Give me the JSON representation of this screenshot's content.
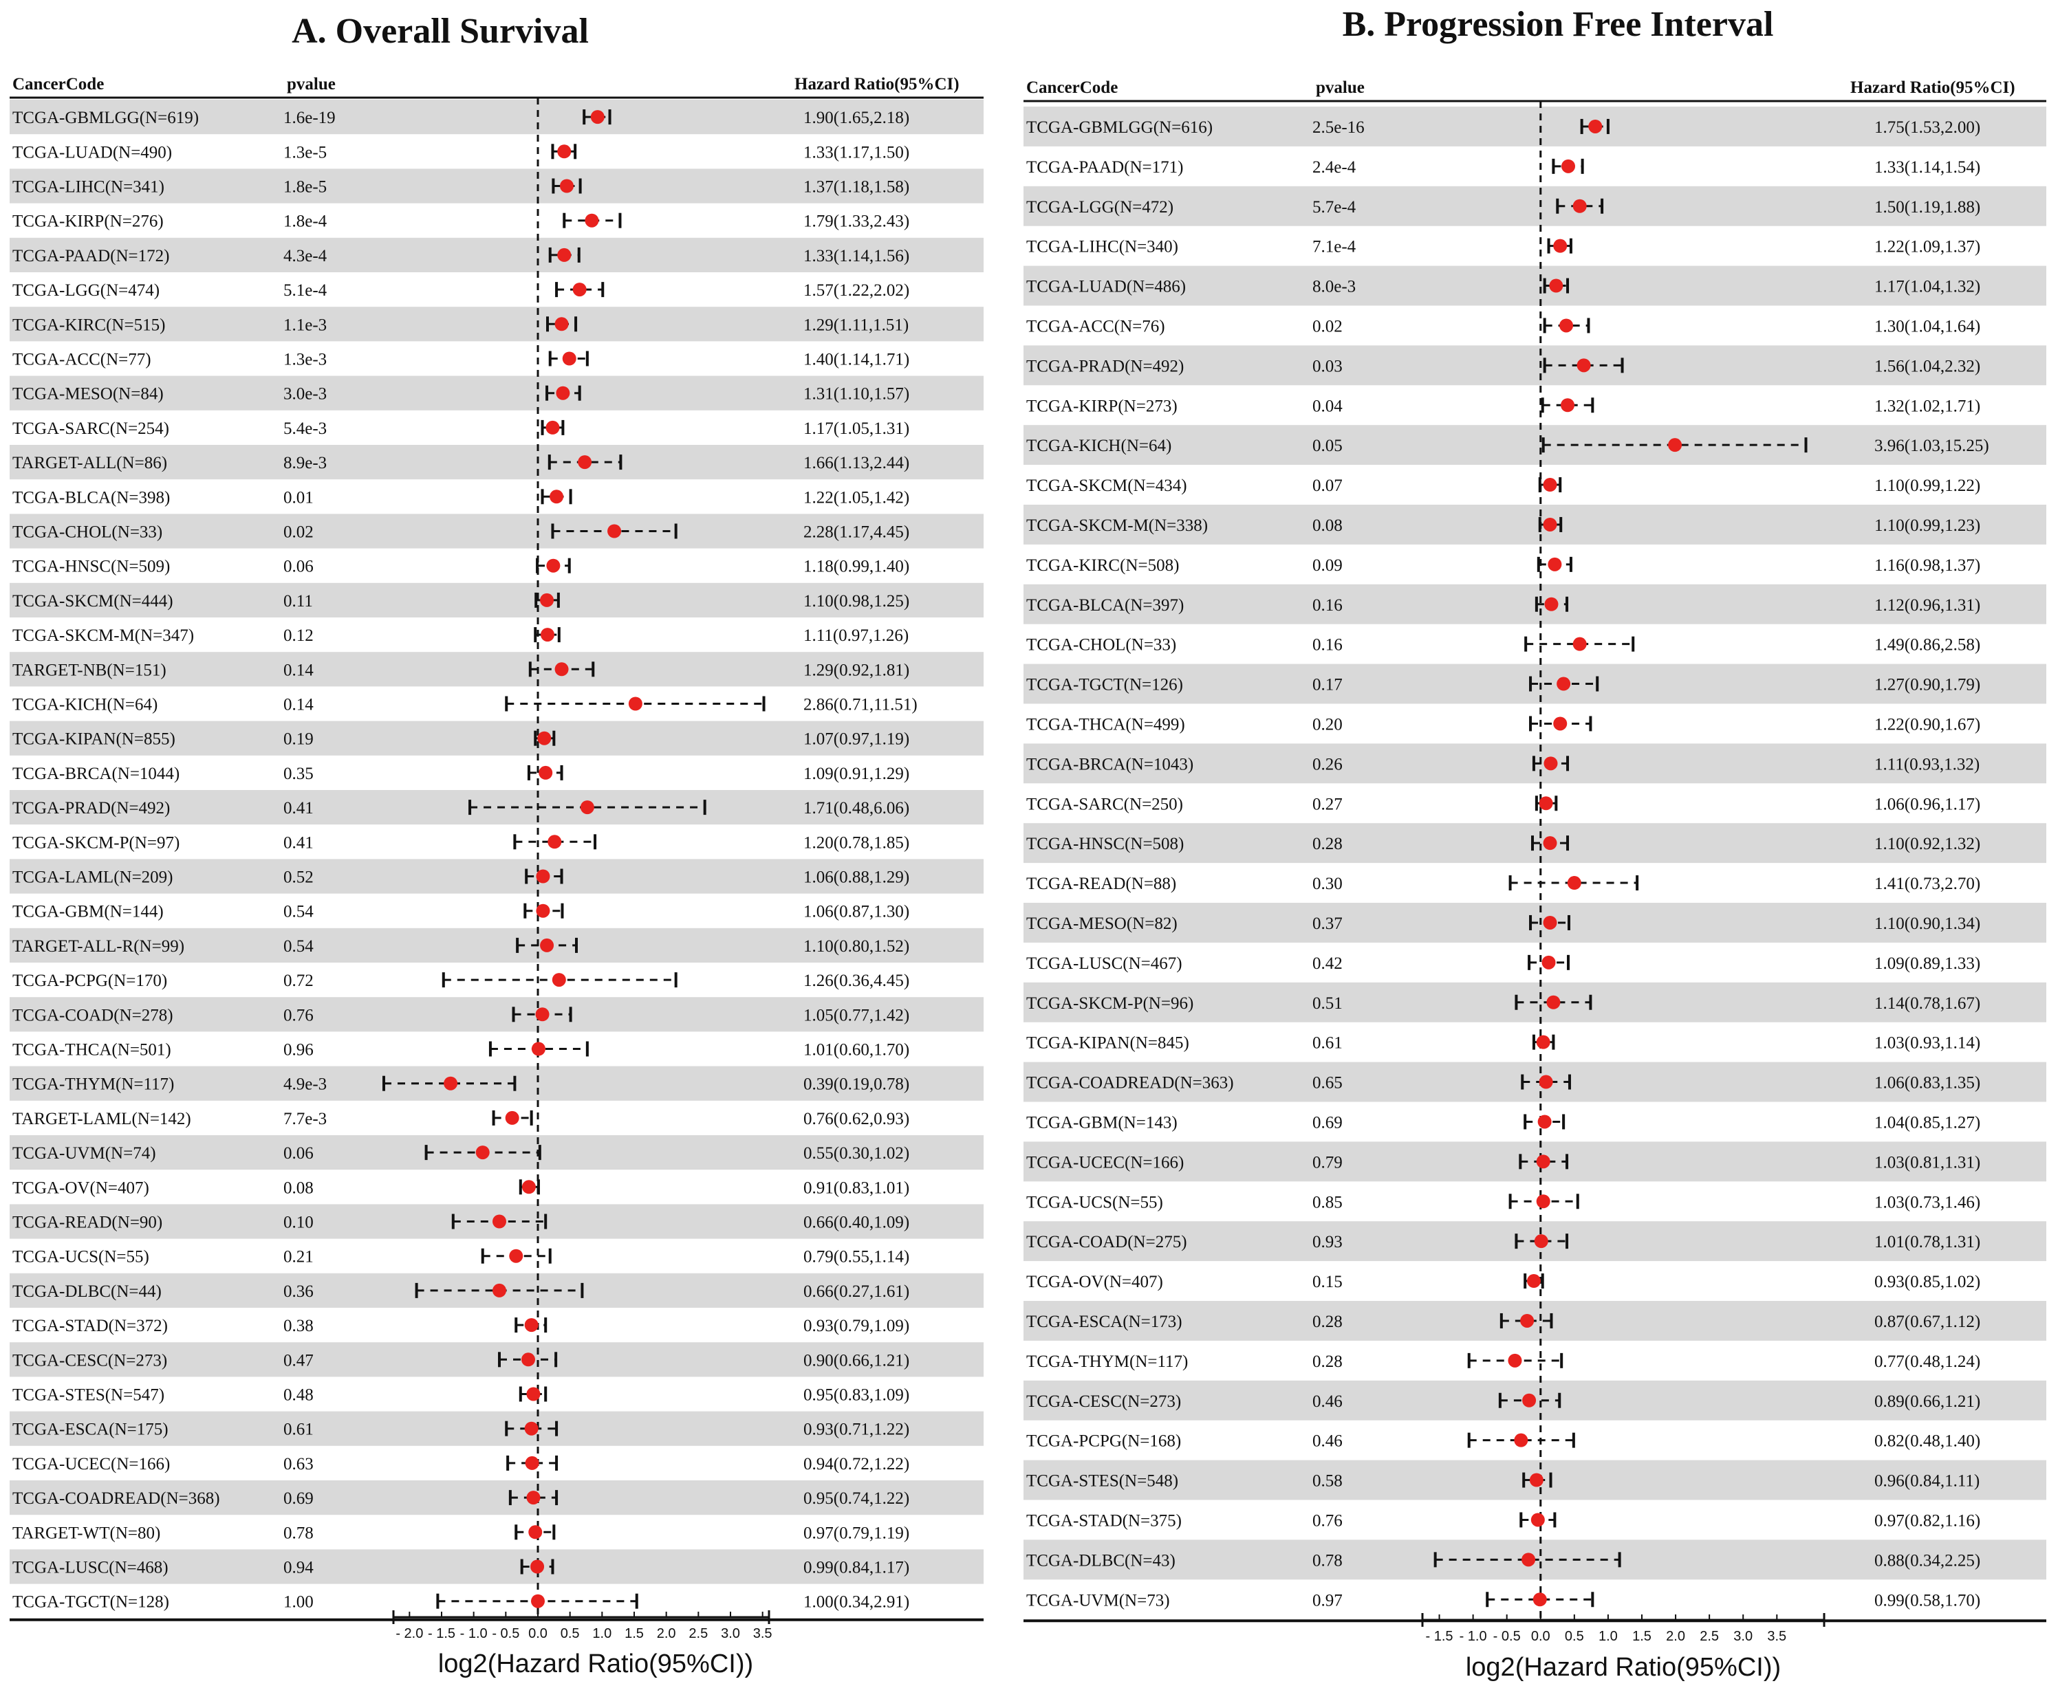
{
  "chart_data": [
    {
      "type": "forest",
      "title": "A.  Overall Survival",
      "headers": {
        "cancer": "CancerCode",
        "pvalue": "pvalue",
        "hr": "Hazard Ratio(95%CI)"
      },
      "xlabel": "log2(Hazard Ratio(95%CI))",
      "xlim": [
        -2.25,
        3.6
      ],
      "ticks": [
        -2.0,
        -1.5,
        -1.0,
        -0.5,
        0.0,
        0.5,
        1.0,
        1.5,
        2.0,
        2.5,
        3.0,
        3.5
      ],
      "tick_labels": [
        "- 2.0",
        "- 1.5",
        "- 1.0",
        "- 0.5",
        "0.0",
        "0.5",
        "1.0",
        "1.5",
        "2.0",
        "2.5",
        "3.0",
        "3.5"
      ],
      "rows": [
        {
          "name": "TCGA-GBMLGG(N=619)",
          "p": "1.6e-19",
          "hr": "1.90(1.65,2.18)",
          "est": 0.93,
          "lo": 0.72,
          "hi": 1.12
        },
        {
          "name": "TCGA-LUAD(N=490)",
          "p": "1.3e-5",
          "hr": "1.33(1.17,1.50)",
          "est": 0.41,
          "lo": 0.23,
          "hi": 0.58
        },
        {
          "name": "TCGA-LIHC(N=341)",
          "p": "1.8e-5",
          "hr": "1.37(1.18,1.58)",
          "est": 0.45,
          "lo": 0.24,
          "hi": 0.66
        },
        {
          "name": "TCGA-KIRP(N=276)",
          "p": "1.8e-4",
          "hr": "1.79(1.33,2.43)",
          "est": 0.84,
          "lo": 0.41,
          "hi": 1.28
        },
        {
          "name": "TCGA-PAAD(N=172)",
          "p": "4.3e-4",
          "hr": "1.33(1.14,1.56)",
          "est": 0.41,
          "lo": 0.19,
          "hi": 0.64
        },
        {
          "name": "TCGA-LGG(N=474)",
          "p": "5.1e-4",
          "hr": "1.57(1.22,2.02)",
          "est": 0.65,
          "lo": 0.29,
          "hi": 1.01
        },
        {
          "name": "TCGA-KIRC(N=515)",
          "p": "1.1e-3",
          "hr": "1.29(1.11,1.51)",
          "est": 0.37,
          "lo": 0.15,
          "hi": 0.59
        },
        {
          "name": "TCGA-ACC(N=77)",
          "p": "1.3e-3",
          "hr": "1.40(1.14,1.71)",
          "est": 0.49,
          "lo": 0.19,
          "hi": 0.77
        },
        {
          "name": "TCGA-MESO(N=84)",
          "p": "3.0e-3",
          "hr": "1.31(1.10,1.57)",
          "est": 0.39,
          "lo": 0.14,
          "hi": 0.65
        },
        {
          "name": "TCGA-SARC(N=254)",
          "p": "5.4e-3",
          "hr": "1.17(1.05,1.31)",
          "est": 0.23,
          "lo": 0.07,
          "hi": 0.39
        },
        {
          "name": "TARGET-ALL(N=86)",
          "p": "8.9e-3",
          "hr": "1.66(1.13,2.44)",
          "est": 0.73,
          "lo": 0.18,
          "hi": 1.29
        },
        {
          "name": "TCGA-BLCA(N=398)",
          "p": "0.01",
          "hr": "1.22(1.05,1.42)",
          "est": 0.29,
          "lo": 0.07,
          "hi": 0.51
        },
        {
          "name": "TCGA-CHOL(N=33)",
          "p": "0.02",
          "hr": "2.28(1.17,4.45)",
          "est": 1.19,
          "lo": 0.23,
          "hi": 2.15
        },
        {
          "name": "TCGA-HNSC(N=509)",
          "p": "0.06",
          "hr": "1.18(0.99,1.40)",
          "est": 0.24,
          "lo": -0.01,
          "hi": 0.49
        },
        {
          "name": "TCGA-SKCM(N=444)",
          "p": "0.11",
          "hr": "1.10(0.98,1.25)",
          "est": 0.14,
          "lo": -0.03,
          "hi": 0.32
        },
        {
          "name": "TCGA-SKCM-M(N=347)",
          "p": "0.12",
          "hr": "1.11(0.97,1.26)",
          "est": 0.15,
          "lo": -0.04,
          "hi": 0.33
        },
        {
          "name": "TARGET-NB(N=151)",
          "p": "0.14",
          "hr": "1.29(0.92,1.81)",
          "est": 0.37,
          "lo": -0.12,
          "hi": 0.86
        },
        {
          "name": "TCGA-KICH(N=64)",
          "p": "0.14",
          "hr": "2.86(0.71,11.51)",
          "est": 1.52,
          "lo": -0.49,
          "hi": 3.52
        },
        {
          "name": "TCGA-KIPAN(N=855)",
          "p": "0.19",
          "hr": "1.07(0.97,1.19)",
          "est": 0.1,
          "lo": -0.04,
          "hi": 0.25
        },
        {
          "name": "TCGA-BRCA(N=1044)",
          "p": "0.35",
          "hr": "1.09(0.91,1.29)",
          "est": 0.12,
          "lo": -0.14,
          "hi": 0.37
        },
        {
          "name": "TCGA-PRAD(N=492)",
          "p": "0.41",
          "hr": "1.71(0.48,6.06)",
          "est": 0.77,
          "lo": -1.06,
          "hi": 2.6
        },
        {
          "name": "TCGA-SKCM-P(N=97)",
          "p": "0.41",
          "hr": "1.20(0.78,1.85)",
          "est": 0.26,
          "lo": -0.36,
          "hi": 0.89
        },
        {
          "name": "TCGA-LAML(N=209)",
          "p": "0.52",
          "hr": "1.06(0.88,1.29)",
          "est": 0.08,
          "lo": -0.18,
          "hi": 0.37
        },
        {
          "name": "TCGA-GBM(N=144)",
          "p": "0.54",
          "hr": "1.06(0.87,1.30)",
          "est": 0.08,
          "lo": -0.2,
          "hi": 0.38
        },
        {
          "name": "TARGET-ALL-R(N=99)",
          "p": "0.54",
          "hr": "1.10(0.80,1.52)",
          "est": 0.14,
          "lo": -0.32,
          "hi": 0.6
        },
        {
          "name": "TCGA-PCPG(N=170)",
          "p": "0.72",
          "hr": "1.26(0.36,4.45)",
          "est": 0.33,
          "lo": -1.47,
          "hi": 2.15
        },
        {
          "name": "TCGA-COAD(N=278)",
          "p": "0.76",
          "hr": "1.05(0.77,1.42)",
          "est": 0.07,
          "lo": -0.38,
          "hi": 0.51
        },
        {
          "name": "TCGA-THCA(N=501)",
          "p": "0.96",
          "hr": "1.01(0.60,1.70)",
          "est": 0.01,
          "lo": -0.74,
          "hi": 0.77
        },
        {
          "name": "TCGA-THYM(N=117)",
          "p": "4.9e-3",
          "hr": "0.39(0.19,0.78)",
          "est": -1.36,
          "lo": -2.4,
          "hi": -0.36
        },
        {
          "name": "TARGET-LAML(N=142)",
          "p": "7.7e-3",
          "hr": "0.76(0.62,0.93)",
          "est": -0.4,
          "lo": -0.69,
          "hi": -0.1
        },
        {
          "name": "TCGA-UVM(N=74)",
          "p": "0.06",
          "hr": "0.55(0.30,1.02)",
          "est": -0.86,
          "lo": -1.74,
          "hi": 0.03
        },
        {
          "name": "TCGA-OV(N=407)",
          "p": "0.08",
          "hr": "0.91(0.83,1.01)",
          "est": -0.14,
          "lo": -0.27,
          "hi": 0.01
        },
        {
          "name": "TCGA-READ(N=90)",
          "p": "0.10",
          "hr": "0.66(0.40,1.09)",
          "est": -0.6,
          "lo": -1.32,
          "hi": 0.12
        },
        {
          "name": "TCGA-UCS(N=55)",
          "p": "0.21",
          "hr": "0.79(0.55,1.14)",
          "est": -0.34,
          "lo": -0.86,
          "hi": 0.19
        },
        {
          "name": "TCGA-DLBC(N=44)",
          "p": "0.36",
          "hr": "0.66(0.27,1.61)",
          "est": -0.6,
          "lo": -1.89,
          "hi": 0.69
        },
        {
          "name": "TCGA-STAD(N=372)",
          "p": "0.38",
          "hr": "0.93(0.79,1.09)",
          "est": -0.1,
          "lo": -0.34,
          "hi": 0.12
        },
        {
          "name": "TCGA-CESC(N=273)",
          "p": "0.47",
          "hr": "0.90(0.66,1.21)",
          "est": -0.15,
          "lo": -0.6,
          "hi": 0.28
        },
        {
          "name": "TCGA-STES(N=547)",
          "p": "0.48",
          "hr": "0.95(0.83,1.09)",
          "est": -0.07,
          "lo": -0.27,
          "hi": 0.12
        },
        {
          "name": "TCGA-ESCA(N=175)",
          "p": "0.61",
          "hr": "0.93(0.71,1.22)",
          "est": -0.1,
          "lo": -0.49,
          "hi": 0.29
        },
        {
          "name": "TCGA-UCEC(N=166)",
          "p": "0.63",
          "hr": "0.94(0.72,1.22)",
          "est": -0.09,
          "lo": -0.47,
          "hi": 0.29
        },
        {
          "name": "TCGA-COADREAD(N=368)",
          "p": "0.69",
          "hr": "0.95(0.74,1.22)",
          "est": -0.07,
          "lo": -0.43,
          "hi": 0.29
        },
        {
          "name": "TARGET-WT(N=80)",
          "p": "0.78",
          "hr": "0.97(0.79,1.19)",
          "est": -0.04,
          "lo": -0.34,
          "hi": 0.25
        },
        {
          "name": "TCGA-LUSC(N=468)",
          "p": "0.94",
          "hr": "0.99(0.84,1.17)",
          "est": -0.01,
          "lo": -0.25,
          "hi": 0.23
        },
        {
          "name": "TCGA-TGCT(N=128)",
          "p": "1.00",
          "hr": "1.00(0.34,2.91)",
          "est": 0.0,
          "lo": -1.56,
          "hi": 1.54
        }
      ]
    },
    {
      "type": "forest",
      "title": "B. Progression Free Interval",
      "headers": {
        "cancer": "CancerCode",
        "pvalue": "pvalue",
        "hr": "Hazard Ratio(95%CI)"
      },
      "xlabel": "log2(Hazard Ratio(95%CI))",
      "xlim": [
        -1.75,
        4.2
      ],
      "ticks": [
        -1.5,
        -1.0,
        -0.5,
        0.0,
        0.5,
        1.0,
        1.5,
        2.0,
        2.5,
        3.0,
        3.5
      ],
      "tick_labels": [
        "- 1.5",
        "- 1.0",
        "- 0.5",
        "0.0",
        "0.5",
        "1.0",
        "1.5",
        "2.0",
        "2.5",
        "3.0",
        "3.5"
      ],
      "rows": [
        {
          "name": "TCGA-GBMLGG(N=616)",
          "p": "2.5e-16",
          "hr": "1.75(1.53,2.00)",
          "est": 0.81,
          "lo": 0.61,
          "hi": 1.0
        },
        {
          "name": "TCGA-PAAD(N=171)",
          "p": "2.4e-4",
          "hr": "1.33(1.14,1.54)",
          "est": 0.41,
          "lo": 0.19,
          "hi": 0.62
        },
        {
          "name": "TCGA-LGG(N=472)",
          "p": "5.7e-4",
          "hr": "1.50(1.19,1.88)",
          "est": 0.58,
          "lo": 0.25,
          "hi": 0.91
        },
        {
          "name": "TCGA-LIHC(N=340)",
          "p": "7.1e-4",
          "hr": "1.22(1.09,1.37)",
          "est": 0.29,
          "lo": 0.12,
          "hi": 0.45
        },
        {
          "name": "TCGA-LUAD(N=486)",
          "p": "8.0e-3",
          "hr": "1.17(1.04,1.32)",
          "est": 0.23,
          "lo": 0.06,
          "hi": 0.4
        },
        {
          "name": "TCGA-ACC(N=76)",
          "p": "0.02",
          "hr": "1.30(1.04,1.64)",
          "est": 0.38,
          "lo": 0.06,
          "hi": 0.71
        },
        {
          "name": "TCGA-PRAD(N=492)",
          "p": "0.03",
          "hr": "1.56(1.04,2.32)",
          "est": 0.64,
          "lo": 0.06,
          "hi": 1.21
        },
        {
          "name": "TCGA-KIRP(N=273)",
          "p": "0.04",
          "hr": "1.32(1.02,1.71)",
          "est": 0.4,
          "lo": 0.03,
          "hi": 0.77
        },
        {
          "name": "TCGA-KICH(N=64)",
          "p": "0.05",
          "hr": "3.96(1.03,15.25)",
          "est": 1.99,
          "lo": 0.04,
          "hi": 3.93
        },
        {
          "name": "TCGA-SKCM(N=434)",
          "p": "0.07",
          "hr": "1.10(0.99,1.22)",
          "est": 0.14,
          "lo": -0.01,
          "hi": 0.29
        },
        {
          "name": "TCGA-SKCM-M(N=338)",
          "p": "0.08",
          "hr": "1.10(0.99,1.23)",
          "est": 0.14,
          "lo": -0.01,
          "hi": 0.3
        },
        {
          "name": "TCGA-KIRC(N=508)",
          "p": "0.09",
          "hr": "1.16(0.98,1.37)",
          "est": 0.21,
          "lo": -0.03,
          "hi": 0.45
        },
        {
          "name": "TCGA-BLCA(N=397)",
          "p": "0.16",
          "hr": "1.12(0.96,1.31)",
          "est": 0.16,
          "lo": -0.06,
          "hi": 0.39
        },
        {
          "name": "TCGA-CHOL(N=33)",
          "p": "0.16",
          "hr": "1.49(0.86,2.58)",
          "est": 0.58,
          "lo": -0.22,
          "hi": 1.37
        },
        {
          "name": "TCGA-TGCT(N=126)",
          "p": "0.17",
          "hr": "1.27(0.90,1.79)",
          "est": 0.34,
          "lo": -0.15,
          "hi": 0.84
        },
        {
          "name": "TCGA-THCA(N=499)",
          "p": "0.20",
          "hr": "1.22(0.90,1.67)",
          "est": 0.29,
          "lo": -0.15,
          "hi": 0.74
        },
        {
          "name": "TCGA-BRCA(N=1043)",
          "p": "0.26",
          "hr": "1.11(0.93,1.32)",
          "est": 0.15,
          "lo": -0.1,
          "hi": 0.4
        },
        {
          "name": "TCGA-SARC(N=250)",
          "p": "0.27",
          "hr": "1.06(0.96,1.17)",
          "est": 0.08,
          "lo": -0.06,
          "hi": 0.23
        },
        {
          "name": "TCGA-HNSC(N=508)",
          "p": "0.28",
          "hr": "1.10(0.92,1.32)",
          "est": 0.14,
          "lo": -0.12,
          "hi": 0.4
        },
        {
          "name": "TCGA-READ(N=88)",
          "p": "0.30",
          "hr": "1.41(0.73,2.70)",
          "est": 0.5,
          "lo": -0.45,
          "hi": 1.43
        },
        {
          "name": "TCGA-MESO(N=82)",
          "p": "0.37",
          "hr": "1.10(0.90,1.34)",
          "est": 0.14,
          "lo": -0.15,
          "hi": 0.42
        },
        {
          "name": "TCGA-LUSC(N=467)",
          "p": "0.42",
          "hr": "1.09(0.89,1.33)",
          "est": 0.12,
          "lo": -0.17,
          "hi": 0.41
        },
        {
          "name": "TCGA-SKCM-P(N=96)",
          "p": "0.51",
          "hr": "1.14(0.78,1.67)",
          "est": 0.19,
          "lo": -0.36,
          "hi": 0.74
        },
        {
          "name": "TCGA-KIPAN(N=845)",
          "p": "0.61",
          "hr": "1.03(0.93,1.14)",
          "est": 0.04,
          "lo": -0.1,
          "hi": 0.19
        },
        {
          "name": "TCGA-COADREAD(N=363)",
          "p": "0.65",
          "hr": "1.06(0.83,1.35)",
          "est": 0.08,
          "lo": -0.27,
          "hi": 0.43
        },
        {
          "name": "TCGA-GBM(N=143)",
          "p": "0.69",
          "hr": "1.04(0.85,1.27)",
          "est": 0.06,
          "lo": -0.23,
          "hi": 0.34
        },
        {
          "name": "TCGA-UCEC(N=166)",
          "p": "0.79",
          "hr": "1.03(0.81,1.31)",
          "est": 0.04,
          "lo": -0.3,
          "hi": 0.39
        },
        {
          "name": "TCGA-UCS(N=55)",
          "p": "0.85",
          "hr": "1.03(0.73,1.46)",
          "est": 0.04,
          "lo": -0.45,
          "hi": 0.55
        },
        {
          "name": "TCGA-COAD(N=275)",
          "p": "0.93",
          "hr": "1.01(0.78,1.31)",
          "est": 0.01,
          "lo": -0.36,
          "hi": 0.39
        },
        {
          "name": "TCGA-OV(N=407)",
          "p": "0.15",
          "hr": "0.93(0.85,1.02)",
          "est": -0.1,
          "lo": -0.23,
          "hi": 0.03
        },
        {
          "name": "TCGA-ESCA(N=173)",
          "p": "0.28",
          "hr": "0.87(0.67,1.12)",
          "est": -0.2,
          "lo": -0.58,
          "hi": 0.16
        },
        {
          "name": "TCGA-THYM(N=117)",
          "p": "0.28",
          "hr": "0.77(0.48,1.24)",
          "est": -0.38,
          "lo": -1.06,
          "hi": 0.31
        },
        {
          "name": "TCGA-CESC(N=273)",
          "p": "0.46",
          "hr": "0.89(0.66,1.21)",
          "est": -0.17,
          "lo": -0.6,
          "hi": 0.28
        },
        {
          "name": "TCGA-PCPG(N=168)",
          "p": "0.46",
          "hr": "0.82(0.48,1.40)",
          "est": -0.29,
          "lo": -1.06,
          "hi": 0.49
        },
        {
          "name": "TCGA-STES(N=548)",
          "p": "0.58",
          "hr": "0.96(0.84,1.11)",
          "est": -0.06,
          "lo": -0.25,
          "hi": 0.15
        },
        {
          "name": "TCGA-STAD(N=375)",
          "p": "0.76",
          "hr": "0.97(0.82,1.16)",
          "est": -0.04,
          "lo": -0.29,
          "hi": 0.21
        },
        {
          "name": "TCGA-DLBC(N=43)",
          "p": "0.78",
          "hr": "0.88(0.34,2.25)",
          "est": -0.18,
          "lo": -1.56,
          "hi": 1.17
        },
        {
          "name": "TCGA-UVM(N=73)",
          "p": "0.97",
          "hr": "0.99(0.58,1.70)",
          "est": -0.01,
          "lo": -0.79,
          "hi": 0.77
        }
      ]
    }
  ],
  "style": {
    "stripe_color": "#d9d9d9",
    "point_color": "#e8221e",
    "line_color": "#111111"
  }
}
